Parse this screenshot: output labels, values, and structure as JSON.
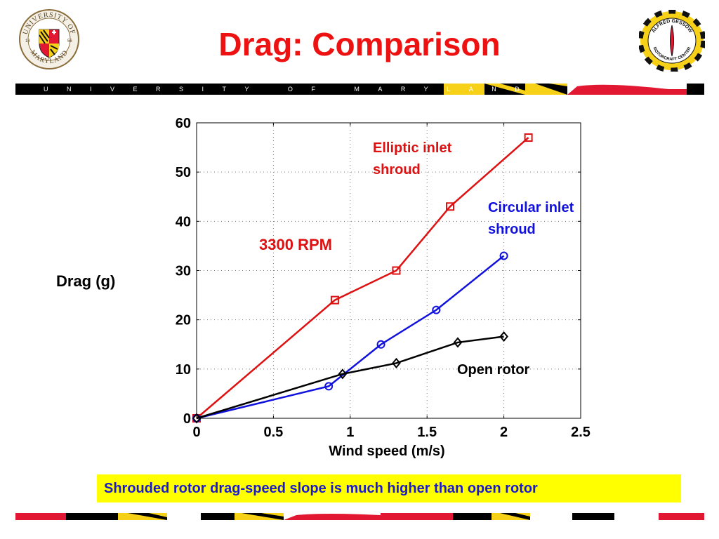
{
  "slide": {
    "title": "Drag: Comparison",
    "banner_text": "UNIVERSITY OF MARYLAND",
    "conclusion": "Shrouded rotor drag-speed slope is much higher than open rotor"
  },
  "logos": {
    "umd_seal": {
      "top": "UNIVERSITY OF",
      "bottom": "MARYLAND",
      "year_left": "18",
      "year_right": "56"
    },
    "agrc_badge": {
      "text_top": "ALFRED GESSOW",
      "text_bottom": "ROTORCRAFT CENTER"
    }
  },
  "colors": {
    "title": "#ee1111",
    "red_series": "#dd1111",
    "blue_series": "#1111dd",
    "black_series": "#000000",
    "highlight": "#ffff00",
    "conclusion_text": "#1a1acc",
    "maryland_gold": "#f7d117",
    "maryland_red": "#e21833"
  },
  "chart_data": {
    "type": "line",
    "xlabel": "Wind speed (m/s)",
    "ylabel": "Drag (g)",
    "xlim": [
      0,
      2.5
    ],
    "ylim": [
      0,
      60
    ],
    "xticks": [
      0,
      0.5,
      1,
      1.5,
      2,
      2.5
    ],
    "xtick_labels": [
      "0",
      "0.5",
      "1",
      "1.5",
      "2",
      "2.5"
    ],
    "yticks": [
      0,
      10,
      20,
      30,
      40,
      50,
      60
    ],
    "ytick_labels": [
      "0",
      "10",
      "20",
      "30",
      "40",
      "50",
      "60"
    ],
    "grid": true,
    "series": [
      {
        "id": "elliptic",
        "name": "Elliptic inlet shroud",
        "label_lines": [
          "Elliptic inlet",
          "shroud"
        ],
        "color": "#dd1111",
        "marker": "square",
        "x": [
          0,
          0.9,
          1.3,
          1.65,
          2.16
        ],
        "y": [
          0,
          24,
          30,
          43,
          57
        ]
      },
      {
        "id": "circular",
        "name": "Circular inlet shroud",
        "label_lines": [
          "Circular inlet",
          "shroud"
        ],
        "color": "#1111dd",
        "marker": "circle",
        "x": [
          0,
          0.86,
          1.2,
          1.56,
          2.0
        ],
        "y": [
          0,
          6.5,
          15,
          22,
          33
        ]
      },
      {
        "id": "open",
        "name": "Open rotor",
        "label_lines": [
          "Open rotor"
        ],
        "color": "#000000",
        "marker": "diamond",
        "x": [
          0,
          0.95,
          1.3,
          1.7,
          2.0
        ],
        "y": [
          0,
          9,
          11.2,
          15.4,
          16.6
        ]
      }
    ],
    "annotations": [
      {
        "id": "rpm",
        "text": "3300 RPM",
        "color": "#dd1111"
      }
    ]
  }
}
